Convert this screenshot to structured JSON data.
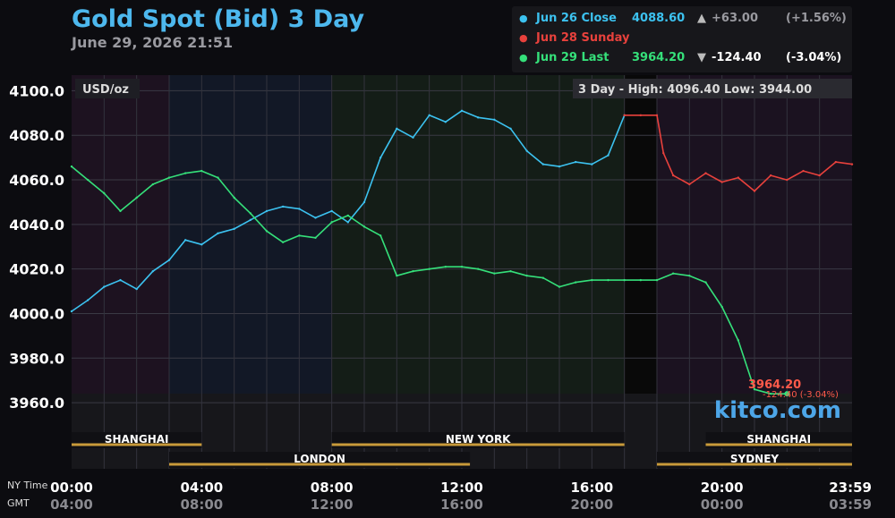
{
  "header": {
    "title": "Gold Spot (Bid) 3 Day",
    "timestamp": "June 29, 2026 21:51"
  },
  "legend": [
    {
      "label": "Jun 26 Close",
      "value": "4088.60",
      "arrow": "▲",
      "change": "+63.00",
      "pct": "(+1.56%)",
      "color": "#3cc2f0",
      "text_color": "#3cc2f0",
      "change_color": "#9a9aa0"
    },
    {
      "label": "Jun 28 Sunday",
      "value": "",
      "arrow": "",
      "change": "",
      "pct": "",
      "color": "#e8413c",
      "text_color": "#e8413c",
      "change_color": "#dddddd"
    },
    {
      "label": "Jun 29 Last",
      "value": "3964.20",
      "arrow": "▼",
      "change": "-124.40",
      "pct": "(-3.04%)",
      "color": "#35e07a",
      "text_color": "#35e07a",
      "change_color": "#ffffff"
    }
  ],
  "chart_data": {
    "type": "line",
    "unit_label": "USD/oz",
    "range_info": {
      "label": "3 Day - High:",
      "high": "4096.40",
      "low_label": "Low:",
      "low": "3944.00"
    },
    "ylim": [
      3948,
      4107
    ],
    "yticks": [
      "4100.0",
      "4080.0",
      "4060.0",
      "4040.0",
      "4020.0",
      "4000.0",
      "3980.0",
      "3960.0"
    ],
    "ytick_values": [
      4100,
      4080,
      4060,
      4040,
      4020,
      4000,
      3980,
      3960
    ],
    "xlim": [
      0,
      24
    ],
    "xticks_ny": [
      "00:00",
      "04:00",
      "08:00",
      "12:00",
      "16:00",
      "20:00",
      "23:59"
    ],
    "xticks_gmt": [
      "04:00",
      "08:00",
      "12:00",
      "16:00",
      "20:00",
      "00:00",
      "03:59"
    ],
    "xtick_hours": [
      0,
      4,
      8,
      12,
      16,
      20,
      24
    ],
    "x_row_labels": [
      "NY Time",
      "GMT"
    ],
    "sessions": [
      {
        "name": "SHANGHAI",
        "start": 0,
        "end": 4,
        "row": 1
      },
      {
        "name": "LONDON",
        "start": 3,
        "end": 12.25,
        "row": 2
      },
      {
        "name": "NEW YORK",
        "start": 8,
        "end": 17,
        "row": 1
      },
      {
        "name": "SHANGHAI",
        "start": 19.5,
        "end": 24,
        "row": 1
      },
      {
        "name": "SYDNEY",
        "start": 18,
        "end": 24,
        "row": 2
      }
    ],
    "last_annotation": {
      "price": "3964.20",
      "change": "-124.40 (-3.04%)"
    },
    "watermark": "kitco.com",
    "series": [
      {
        "name": "Jun 26 Close",
        "color": "#3cc2f0",
        "x": [
          0,
          0.5,
          1,
          1.5,
          2,
          2.5,
          3,
          3.5,
          4,
          4.5,
          5,
          5.5,
          6,
          6.5,
          7,
          7.5,
          8,
          8.5,
          9,
          9.5,
          10,
          10.5,
          11,
          11.5,
          12,
          12.5,
          13,
          13.5,
          14,
          14.5,
          15,
          15.5,
          16,
          16.5,
          17
        ],
        "y": [
          4001,
          4006,
          4012,
          4015,
          4011,
          4019,
          4024,
          4033,
          4031,
          4036,
          4038,
          4042,
          4046,
          4048,
          4047,
          4043,
          4046,
          4041,
          4050,
          4070,
          4083,
          4079,
          4089,
          4086,
          4091,
          4088,
          4087,
          4083,
          4073,
          4067,
          4066,
          4068,
          4067,
          4071,
          4089
        ]
      },
      {
        "name": "Jun 28 Sunday",
        "color": "#e8413c",
        "x": [
          17,
          17.5,
          18,
          18.2,
          18.5,
          19,
          19.5,
          20,
          20.5,
          21,
          21.5,
          22,
          22.5,
          23,
          23.5,
          24
        ],
        "y": [
          4089,
          4089,
          4089,
          4072,
          4062,
          4058,
          4063,
          4059,
          4061,
          4055,
          4062,
          4060,
          4064,
          4062,
          4068,
          4067
        ]
      },
      {
        "name": "Jun 29 Last",
        "color": "#35e07a",
        "x": [
          0,
          0.5,
          1,
          1.5,
          2,
          2.5,
          3,
          3.5,
          4,
          4.5,
          5,
          5.5,
          6,
          6.5,
          7,
          7.5,
          8,
          8.5,
          9,
          9.5,
          10,
          10.5,
          11,
          11.5,
          12,
          12.5,
          13,
          13.5,
          14,
          14.5,
          15,
          15.5,
          16,
          16.5,
          17,
          17.5,
          18,
          18.5,
          19,
          19.5,
          20,
          20.5,
          21,
          21.5,
          22
        ],
        "y": [
          4066,
          4060,
          4054,
          4046,
          4052,
          4058,
          4061,
          4063,
          4064,
          4061,
          4052,
          4045,
          4037,
          4032,
          4035,
          4034,
          4041,
          4044,
          4039,
          4035,
          4017,
          4019,
          4020,
          4021,
          4021,
          4020,
          4018,
          4019,
          4017,
          4016,
          4012,
          4014,
          4015,
          4015,
          4015,
          4015,
          4015,
          4018,
          4017,
          4014,
          4003,
          3988,
          3966,
          3964,
          3964
        ]
      }
    ]
  }
}
